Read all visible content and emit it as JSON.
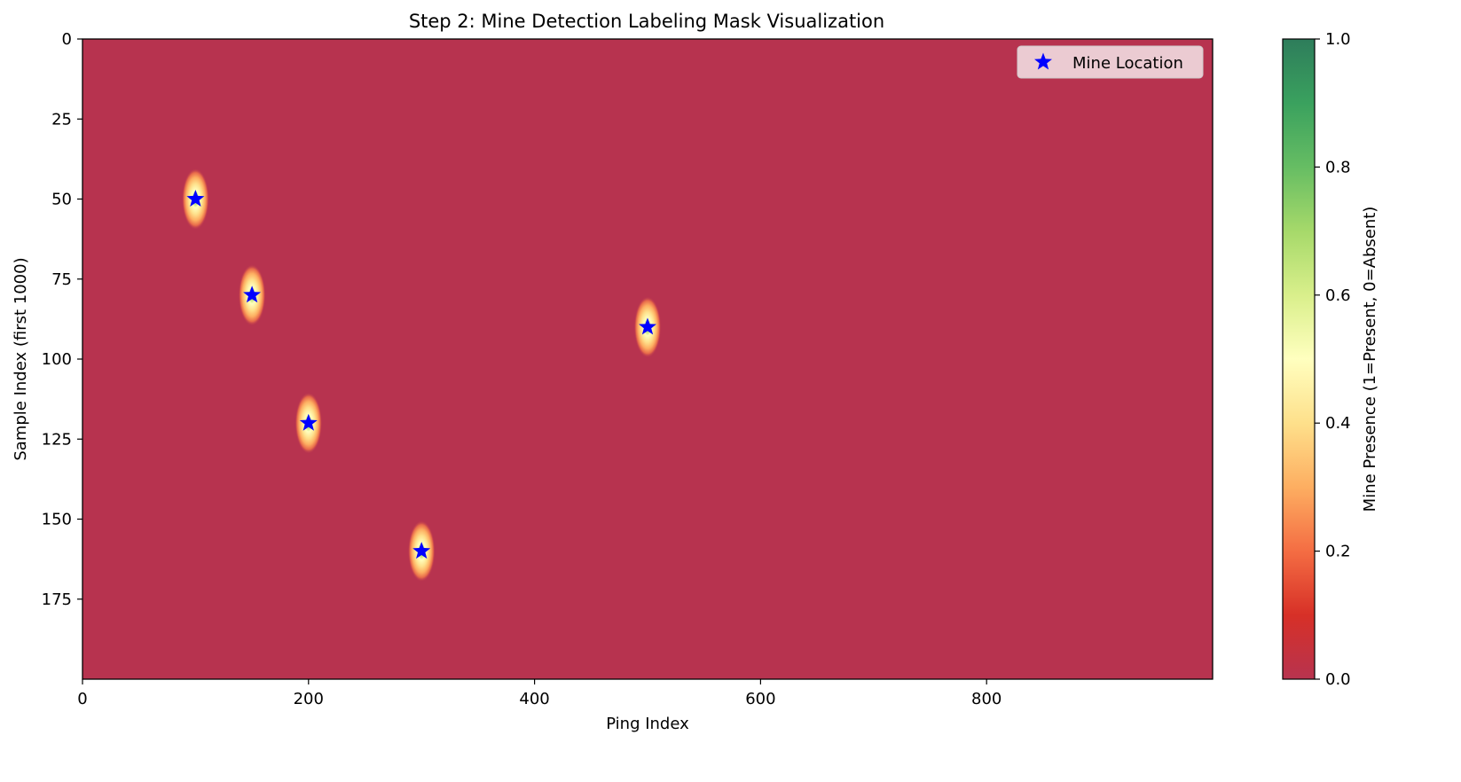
{
  "chart_data": {
    "type": "heatmap",
    "title": "Step 2: Mine Detection Labeling Mask Visualization",
    "xlabel": "Ping Index",
    "ylabel": "Sample Index (first 1000)",
    "xlim": [
      0,
      1000
    ],
    "ylim": [
      200,
      0
    ],
    "y_inverted": true,
    "xticks": [
      0,
      200,
      400,
      600,
      800
    ],
    "yticks": [
      0,
      25,
      50,
      75,
      100,
      125,
      150,
      175
    ],
    "background_value": 0.0,
    "colormap": "RdYlGn",
    "mines": [
      {
        "ping": 100,
        "sample": 50,
        "peak": 1.0
      },
      {
        "ping": 150,
        "sample": 80,
        "peak": 1.0
      },
      {
        "ping": 200,
        "sample": 120,
        "peak": 1.0
      },
      {
        "ping": 300,
        "sample": 160,
        "peak": 1.0
      },
      {
        "ping": 500,
        "sample": 90,
        "peak": 1.0
      }
    ],
    "blob_sigma": {
      "ping": 4,
      "sample": 4
    },
    "legend": {
      "label": "Mine Location",
      "placement": "top-right",
      "marker_color": "#0000ff"
    },
    "colorbar": {
      "label": "Mine Presence (1=Present, 0=Absent)",
      "range": [
        0,
        1
      ],
      "ticks": [
        0.0,
        0.2,
        0.4,
        0.6,
        0.8,
        1.0
      ],
      "tick_labels": [
        "0.0",
        "0.2",
        "0.4",
        "0.6",
        "0.8",
        "1.0"
      ]
    },
    "grid": false
  }
}
